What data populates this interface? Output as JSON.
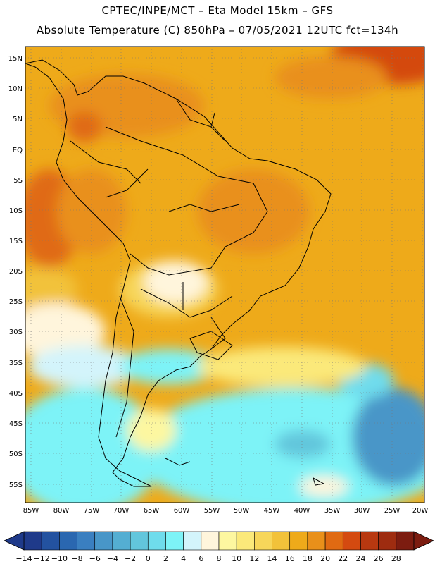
{
  "header": {
    "line1": "CPTEC/INPE/MCT –  Eta Model 15km – GFS",
    "line2": "Absolute Temperature (C) 850hPa – 07/05/2021 12UTC fct=134h"
  },
  "map": {
    "lat_labels": [
      "15N",
      "10N",
      "5N",
      "EQ",
      "5S",
      "10S",
      "15S",
      "20S",
      "25S",
      "30S",
      "35S",
      "40S",
      "45S",
      "50S",
      "55S"
    ],
    "lon_labels": [
      "85W",
      "80W",
      "75W",
      "70W",
      "65W",
      "60W",
      "55W",
      "50W",
      "45W",
      "40W",
      "35W",
      "30W",
      "25W",
      "20W"
    ],
    "graticule": "dotted"
  },
  "colorbar": {
    "labels": [
      "-14",
      "-12",
      "-10",
      "-8",
      "-6",
      "-4",
      "-2",
      "0",
      "2",
      "4",
      "6",
      "8",
      "10",
      "12",
      "14",
      "16",
      "18",
      "20",
      "22",
      "24",
      "26",
      "28"
    ],
    "colors": [
      "#1f3a8a",
      "#2352a0",
      "#2a67b0",
      "#3a7fc0",
      "#4896c8",
      "#54aed2",
      "#62c6dc",
      "#6fdcec",
      "#7df3f7",
      "#d3f4fb",
      "#fff5dc",
      "#fdf7a0",
      "#fbe97a",
      "#f7d65a",
      "#f2c23a",
      "#eeaa1a",
      "#e9901a",
      "#e06a12",
      "#d44a10",
      "#b83810",
      "#9e2c10",
      "#7c1c10"
    ]
  }
}
